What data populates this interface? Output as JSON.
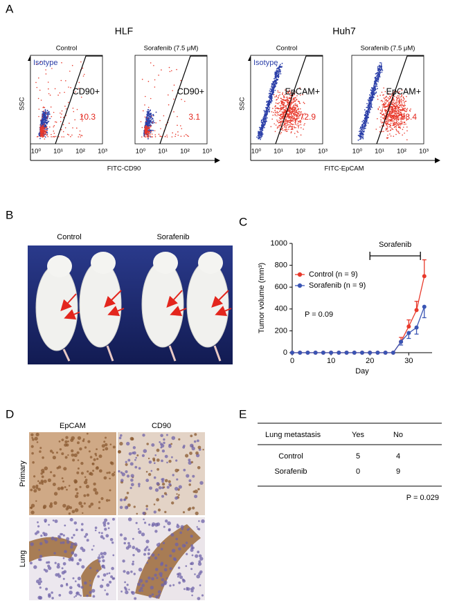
{
  "panel_a": {
    "label": "A",
    "x_ticks": [
      "10⁰",
      "10¹",
      "10²",
      "10³"
    ],
    "cell_lines": [
      {
        "name": "HLF",
        "y_label": "SSC",
        "x_label": "FITC-CD90",
        "plots": [
          {
            "title": "Control",
            "isotype": "Isotype",
            "gate": "CD90+",
            "percent": 10.3
          },
          {
            "title": "Sorafenib (7.5 μM)",
            "gate": "CD90+",
            "percent": 3.1
          }
        ]
      },
      {
        "name": "Huh7",
        "y_label": "SSC",
        "x_label": "FITC-EpCAM",
        "plots": [
          {
            "title": "Control",
            "isotype": "Isotype",
            "gate": "EpCAM+",
            "percent": 72.9
          },
          {
            "title": "Sorafenib (7.5 μM)",
            "gate": "EpCAM+",
            "percent": 88.4
          }
        ]
      }
    ]
  },
  "panel_b": {
    "label": "B",
    "groups": [
      "Control",
      "Sorafenib"
    ]
  },
  "panel_c": {
    "label": "C"
  },
  "chart_data": {
    "type": "line",
    "x_label": "Day",
    "y_label": "Tumor volume (mm³)",
    "annotation": "P = 0.09",
    "treatment": {
      "label": "Sorafenib",
      "start": 20,
      "end": 33
    },
    "x": [
      0,
      2,
      4,
      6,
      8,
      10,
      12,
      14,
      16,
      18,
      20,
      22,
      24,
      26,
      28,
      30,
      32,
      34
    ],
    "series": [
      {
        "name": "Control (n = 9)",
        "color": "#e8392b",
        "values": [
          0,
          0,
          0,
          0,
          0,
          0,
          0,
          0,
          0,
          0,
          0,
          0,
          0,
          0,
          100,
          240,
          390,
          700
        ],
        "errors": [
          0,
          0,
          0,
          0,
          0,
          0,
          0,
          0,
          0,
          0,
          0,
          0,
          0,
          0,
          40,
          60,
          80,
          150
        ]
      },
      {
        "name": "Sorafenib (n = 9)",
        "color": "#3a55b4",
        "values": [
          0,
          0,
          0,
          0,
          0,
          0,
          0,
          0,
          0,
          0,
          0,
          0,
          0,
          0,
          100,
          180,
          230,
          420
        ],
        "errors": [
          0,
          0,
          0,
          0,
          0,
          0,
          0,
          0,
          0,
          0,
          0,
          0,
          0,
          0,
          30,
          50,
          60,
          100
        ]
      }
    ],
    "xlim": [
      0,
      36
    ],
    "xticks": [
      0,
      10,
      20,
      30
    ],
    "ylim": [
      0,
      1000
    ],
    "yticks": [
      0,
      200,
      400,
      600,
      800,
      1000
    ],
    "legend": "upper left"
  },
  "panel_d": {
    "label": "D",
    "columns": [
      "EpCAM",
      "CD90"
    ],
    "rows": [
      "Primary",
      "Lung"
    ]
  },
  "panel_e": {
    "label": "E",
    "table": {
      "header": [
        "Lung metastasis",
        "Yes",
        "No"
      ],
      "rows": [
        [
          "Control",
          5,
          4
        ],
        [
          "Sorafenib",
          0,
          9
        ]
      ]
    },
    "p_value": "P = 0.029"
  }
}
